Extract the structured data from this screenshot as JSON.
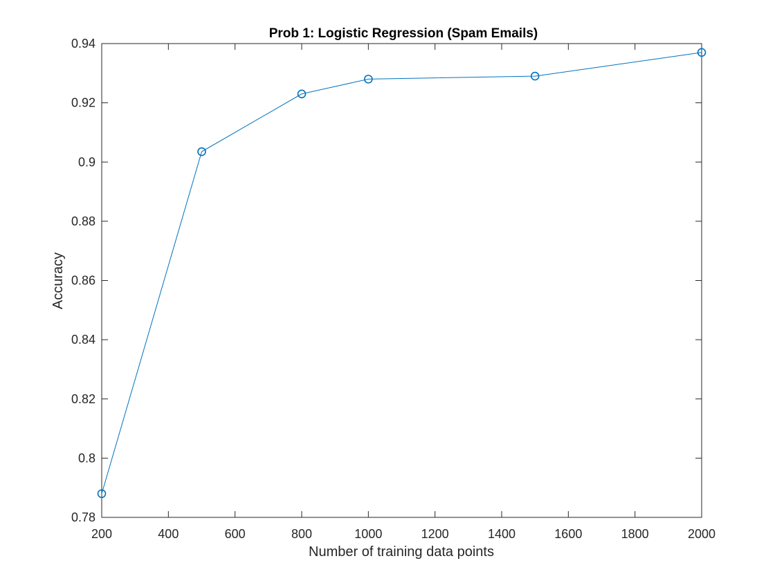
{
  "chart_data": {
    "type": "line",
    "title": "Prob 1: Logistic Regression (Spam Emails)",
    "xlabel": "Number of training data points",
    "ylabel": "Accuracy",
    "x": [
      200,
      500,
      800,
      1000,
      1500,
      2000
    ],
    "series": [
      {
        "values": [
          0.788,
          0.9035,
          0.923,
          0.928,
          0.929,
          0.937
        ],
        "color": "#0072BD",
        "marker": "circle"
      }
    ],
    "xlim": [
      200,
      2000
    ],
    "ylim": [
      0.78,
      0.94
    ],
    "xticks": [
      200,
      400,
      600,
      800,
      1000,
      1200,
      1400,
      1600,
      1800,
      2000
    ],
    "xtick_labels": [
      "200",
      "400",
      "600",
      "800",
      "1000",
      "1200",
      "1400",
      "1600",
      "1800",
      "2000"
    ],
    "yticks": [
      0.78,
      0.8,
      0.82,
      0.84,
      0.86,
      0.88,
      0.9,
      0.92,
      0.94
    ],
    "ytick_labels": [
      "0.78",
      "0.8",
      "0.82",
      "0.84",
      "0.86",
      "0.88",
      "0.9",
      "0.92",
      "0.94"
    ],
    "grid": false,
    "box": true
  }
}
